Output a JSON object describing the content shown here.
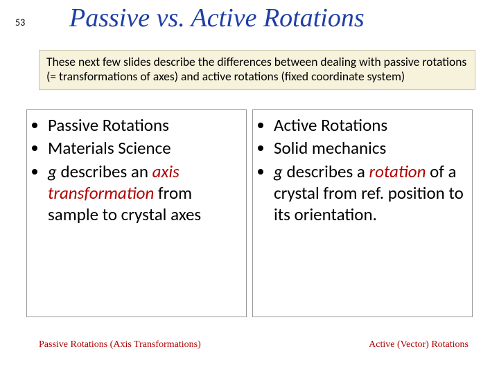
{
  "page_number": "53",
  "title": "Passive vs. Active Rotations",
  "intro": "These next few slides describe the differences between dealing with passive rotations (= transformations of axes) and active rotations (fixed coordinate system)",
  "left": {
    "b1": "Passive Rotations",
    "b2": "Materials Science",
    "b3_g": "g",
    "b3_mid": " describes an ",
    "b3_em": "axis transformation",
    "b3_tail": " from sample to crystal axes"
  },
  "right": {
    "b1": "Active Rotations",
    "b2": "Solid mechanics",
    "b3_g": "g",
    "b3_mid": " describes a ",
    "b3_em": "rotation",
    "b3_tail": " of a crystal from ref. position to its orientation."
  },
  "caption_left": "Passive Rotations (Axis Transformations)",
  "caption_right": "Active (Vector) Rotations",
  "colors": {
    "title": "#1f3fa6",
    "intro_bg": "#f6f2dc",
    "intro_border": "#c9c4a7",
    "accent_red": "#b00000",
    "col_border": "#999999"
  }
}
